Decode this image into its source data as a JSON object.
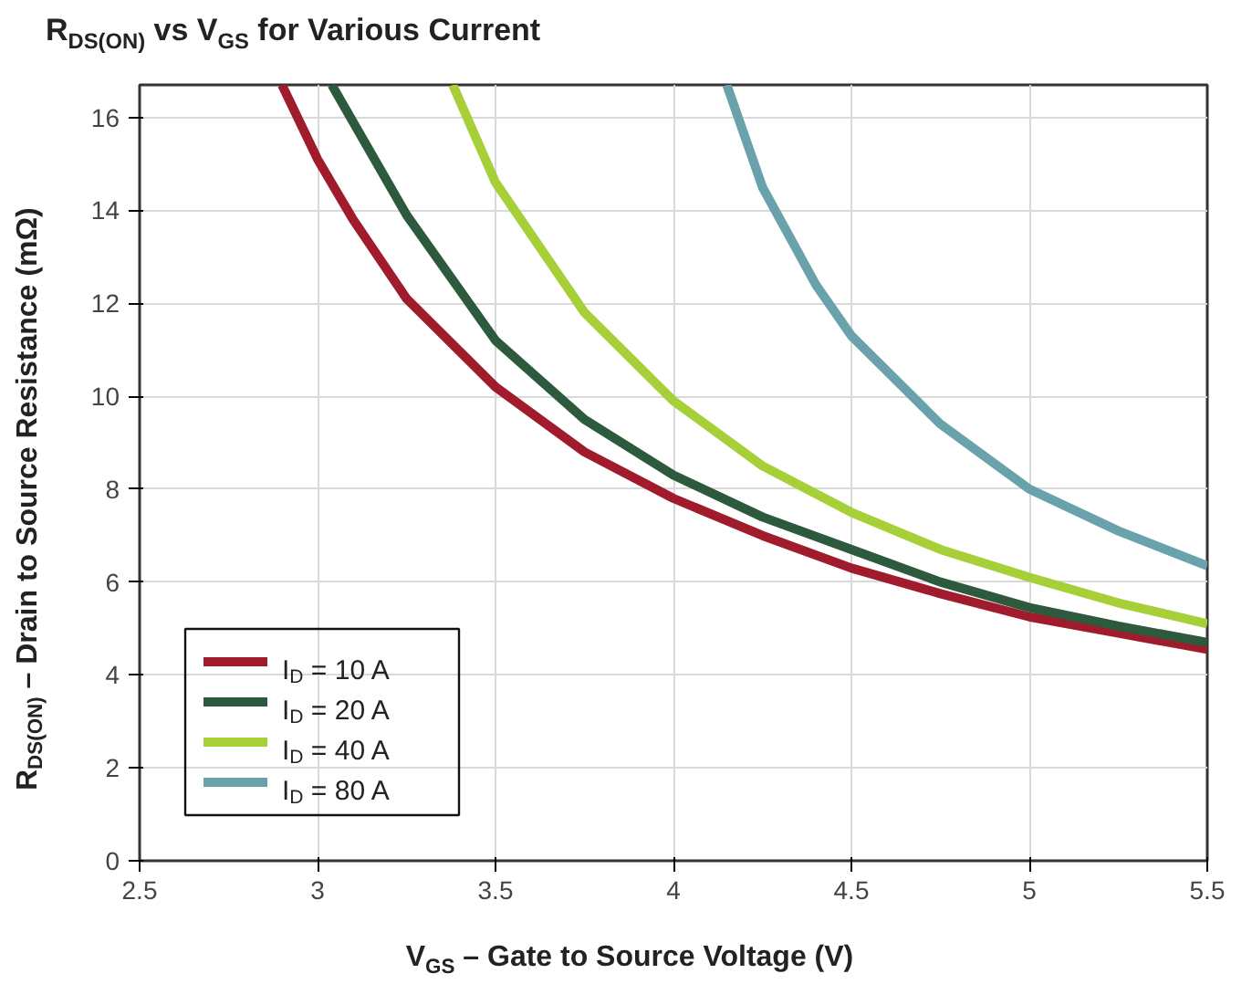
{
  "chart_data": {
    "type": "line",
    "title": "R$_{DS(ON)}$ vs V$_{GS}$ for Various Current",
    "xlabel": "V$_{GS}$ – Gate to Source Voltage (V)",
    "ylabel": "R$_{DS(ON)}$ – Drain to Source Resistance (mΩ)",
    "xlim": [
      2.5,
      5.5
    ],
    "ylim": [
      0,
      16.7
    ],
    "xticks": [
      2.5,
      3,
      3.5,
      4,
      4.5,
      5,
      5.5
    ],
    "yticks": [
      0,
      2,
      4,
      6,
      8,
      10,
      12,
      14,
      16
    ],
    "grid": true,
    "legend": "bottom left",
    "line_style": "solid",
    "marker": "none",
    "series": [
      {
        "name": "I$_{D}$ = 10 A",
        "color": "#a01c2c",
        "x": [
          2.9,
          3.0,
          3.1,
          3.25,
          3.5,
          3.75,
          4.0,
          4.25,
          4.5,
          4.75,
          5.0,
          5.25,
          5.5
        ],
        "values": [
          16.7,
          15.1,
          13.8,
          12.1,
          10.2,
          8.8,
          7.8,
          7.0,
          6.3,
          5.75,
          5.25,
          4.9,
          4.55
        ]
      },
      {
        "name": "I$_{D}$ = 20 A",
        "color": "#2d5a3c",
        "x": [
          3.04,
          3.1,
          3.25,
          3.5,
          3.75,
          4.0,
          4.25,
          4.5,
          4.75,
          5.0,
          5.25,
          5.5
        ],
        "values": [
          16.7,
          15.9,
          13.9,
          11.2,
          9.5,
          8.3,
          7.4,
          6.7,
          6.0,
          5.45,
          5.05,
          4.7
        ]
      },
      {
        "name": "I$_{D}$ = 40 A",
        "color": "#a6cf38",
        "x": [
          3.38,
          3.5,
          3.75,
          4.0,
          4.25,
          4.5,
          4.75,
          5.0,
          5.25,
          5.5
        ],
        "values": [
          16.7,
          14.6,
          11.8,
          9.9,
          8.5,
          7.5,
          6.7,
          6.1,
          5.55,
          5.1
        ]
      },
      {
        "name": "I$_{D}$ = 80 A",
        "color": "#6aa2ac",
        "x": [
          4.15,
          4.25,
          4.4,
          4.5,
          4.75,
          5.0,
          5.25,
          5.5
        ],
        "values": [
          16.7,
          14.5,
          12.4,
          11.3,
          9.4,
          8.0,
          7.1,
          6.35
        ]
      }
    ]
  }
}
